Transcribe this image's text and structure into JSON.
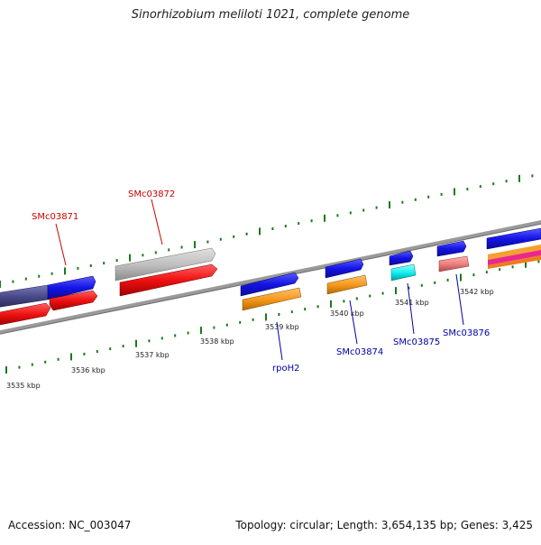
{
  "header": {
    "title": "Sinorhizobium meliloti 1021, complete genome"
  },
  "footer": {
    "accession": "Accession: NC_003047",
    "topology": "Topology: circular; Length: 3,654,135 bp; Genes: 3,425"
  },
  "ruler": {
    "ticks": [
      "3535 kbp",
      "3536 kbp",
      "3537 kbp",
      "3538 kbp",
      "3539 kbp",
      "3540 kbp",
      "3541 kbp",
      "3542 kbp"
    ]
  },
  "genes": {
    "forward_labels": [
      "SMc03871",
      "SMc03872"
    ],
    "reverse_labels": [
      "rpoH2",
      "SMc03874",
      "SMc03875",
      "SMc03876"
    ]
  },
  "colors": {
    "forward_label": "#cc0000",
    "reverse_label": "#0000aa",
    "tick": "#1a7a1a",
    "backbone": "#8a8a8a",
    "blue_gene": "#1414e6",
    "red_gene": "#ee1111",
    "orange_gene": "#f59a1e",
    "cyan_gene": "#11f2f2",
    "pink_gene": "#ee8080",
    "grey_gene": "#c0c0c0",
    "navy_gene": "#4a4a8a"
  }
}
